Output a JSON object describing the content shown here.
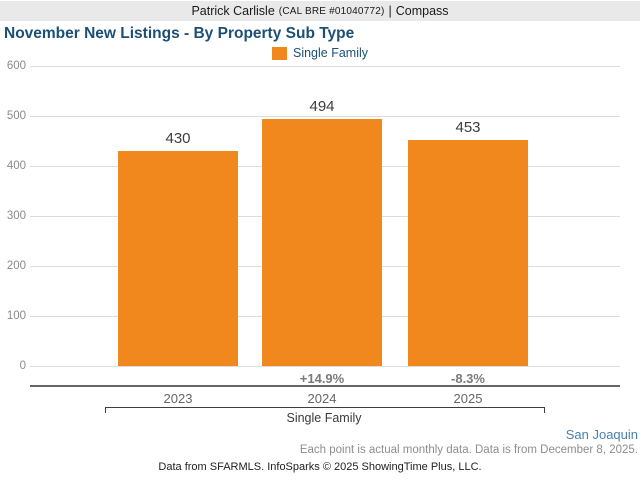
{
  "banner": {
    "agent_name": "Patrick Carlisle",
    "license": "(CAL BRE #01040772)",
    "separator": "|",
    "brand": "Compass"
  },
  "title": "November New Listings - By Property Sub Type",
  "legend": {
    "label": "Single Family",
    "color": "#F0881E"
  },
  "chart_data": {
    "type": "bar",
    "title": "November New Listings - By Property Sub Type",
    "categories": [
      "2023",
      "2024",
      "2025"
    ],
    "series": [
      {
        "name": "Single Family",
        "values": [
          430,
          494,
          453
        ]
      }
    ],
    "value_labels": [
      "430",
      "494",
      "453"
    ],
    "pct_change_labels": [
      "",
      "+14.9%",
      "-8.3%"
    ],
    "group_label": "Single Family",
    "xlabel": "",
    "ylabel": "",
    "ylim": [
      0,
      600
    ],
    "yticks": [
      0,
      100,
      200,
      300,
      400,
      500,
      600
    ],
    "grid": true,
    "legend_position": "top-center",
    "bar_color": "#F0881E"
  },
  "footer": {
    "region": "San Joaquin",
    "note": "Each point is actual monthly data. Data is from December 8, 2025.",
    "attribution": "Data from SFARMLS. InfoSparks © 2025 ShowingTime Plus, LLC."
  }
}
